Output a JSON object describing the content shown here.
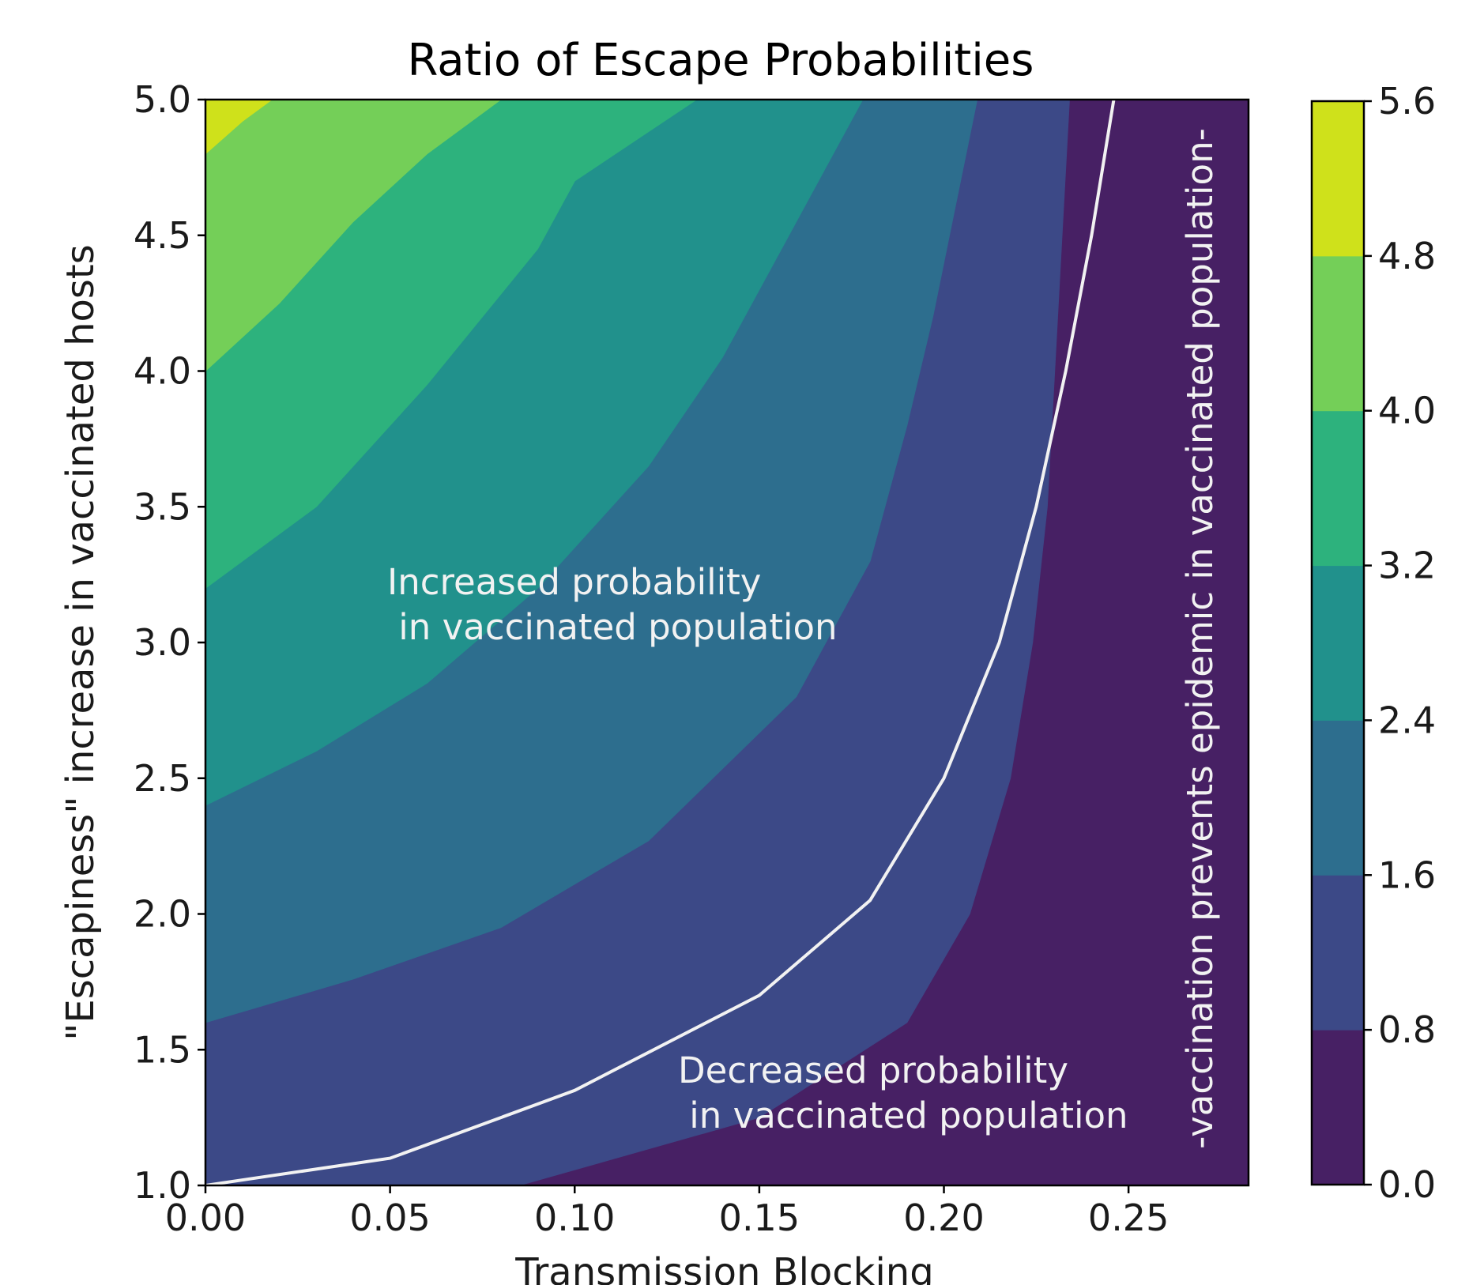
{
  "chart_data": {
    "type": "heatmap",
    "subtype": "filled-contour",
    "title": "Ratio of Escape Probabilities",
    "xlabel": "Transmission Blocking",
    "ylabel": "\"Escapiness\" increase in vaccinated hosts",
    "xlim": [
      0.0,
      0.2825
    ],
    "ylim": [
      1.0,
      5.0
    ],
    "x_ticks": [
      "0.00",
      "0.05",
      "0.10",
      "0.15",
      "0.20",
      "0.25"
    ],
    "y_ticks": [
      "1.0",
      "1.5",
      "2.0",
      "2.5",
      "3.0",
      "3.5",
      "4.0",
      "4.5",
      "5.0"
    ],
    "grid": false,
    "colorbar": {
      "levels": [
        0.0,
        0.8,
        1.6,
        2.4,
        3.2,
        4.0,
        4.8,
        5.6
      ],
      "tick_labels": [
        "0.0",
        "0.8",
        "1.6",
        "2.4",
        "3.2",
        "4.0",
        "4.8",
        "5.6"
      ],
      "colors": [
        "#472064",
        "#3c4987",
        "#2d6e8e",
        "#21918c",
        "#2db27d",
        "#74cf58",
        "#cfe11b"
      ]
    },
    "contour_boundaries": [
      {
        "level": 0.8,
        "points": [
          [
            0.085,
            1.0
          ],
          [
            0.15,
            1.25
          ],
          [
            0.19,
            1.6
          ],
          [
            0.207,
            2.0
          ],
          [
            0.218,
            2.5
          ],
          [
            0.224,
            3.0
          ],
          [
            0.228,
            3.5
          ],
          [
            0.23,
            4.0
          ],
          [
            0.232,
            4.5
          ],
          [
            0.234,
            5.0
          ]
        ]
      },
      {
        "level": 1.6,
        "points": [
          [
            0.0,
            1.6
          ],
          [
            0.04,
            1.76
          ],
          [
            0.08,
            1.95
          ],
          [
            0.12,
            2.27
          ],
          [
            0.16,
            2.8
          ],
          [
            0.18,
            3.3
          ],
          [
            0.19,
            3.8
          ],
          [
            0.197,
            4.2
          ],
          [
            0.203,
            4.6
          ],
          [
            0.209,
            5.0
          ]
        ]
      },
      {
        "level": 2.4,
        "points": [
          [
            0.0,
            2.4
          ],
          [
            0.03,
            2.6
          ],
          [
            0.06,
            2.85
          ],
          [
            0.09,
            3.2
          ],
          [
            0.12,
            3.65
          ],
          [
            0.14,
            4.05
          ],
          [
            0.16,
            4.55
          ],
          [
            0.178,
            5.0
          ]
        ]
      },
      {
        "level": 3.2,
        "points": [
          [
            0.0,
            3.2
          ],
          [
            0.03,
            3.5
          ],
          [
            0.06,
            3.95
          ],
          [
            0.09,
            4.45
          ],
          [
            0.1,
            4.7
          ],
          [
            0.133,
            5.0
          ]
        ]
      },
      {
        "level": 4.0,
        "points": [
          [
            0.0,
            4.0
          ],
          [
            0.02,
            4.25
          ],
          [
            0.04,
            4.55
          ],
          [
            0.06,
            4.8
          ],
          [
            0.08,
            5.0
          ]
        ]
      },
      {
        "level": 4.8,
        "points": [
          [
            0.0,
            4.8
          ],
          [
            0.01,
            4.92
          ],
          [
            0.018,
            5.0
          ]
        ]
      }
    ],
    "threshold_line": {
      "color": "#f2f2f2",
      "points": [
        [
          0.0,
          1.0
        ],
        [
          0.05,
          1.1
        ],
        [
          0.1,
          1.35
        ],
        [
          0.15,
          1.7
        ],
        [
          0.18,
          2.05
        ],
        [
          0.2,
          2.5
        ],
        [
          0.215,
          3.0
        ],
        [
          0.225,
          3.5
        ],
        [
          0.233,
          4.0
        ],
        [
          0.24,
          4.5
        ],
        [
          0.246,
          5.0
        ]
      ]
    },
    "annotations": [
      {
        "lines": [
          "Increased probability",
          " in vaccinated population"
        ]
      },
      {
        "lines": [
          "Decreased probability",
          " in vaccinated population"
        ]
      },
      {
        "text": "-vaccination prevents epidemic in vaccinated population-"
      }
    ]
  }
}
